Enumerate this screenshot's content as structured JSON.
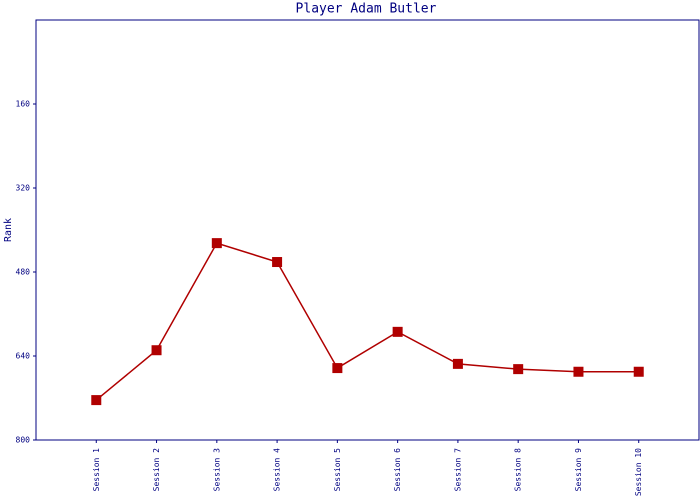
{
  "chart_data": {
    "type": "line",
    "title": "Player Adam Butler",
    "ylabel": "Rank",
    "categories": [
      "Session 1",
      "Session 2",
      "Session 3",
      "Session 4",
      "Session 5",
      "Session 6",
      "Session 7",
      "Session 8",
      "Session 9",
      "Session 10"
    ],
    "series": [
      {
        "name": "Rank",
        "color": "#b00000",
        "values": [
          724,
          629,
          425,
          461,
          663,
          594,
          655,
          665,
          670,
          670
        ]
      }
    ],
    "ylim": [
      800,
      0
    ],
    "yticks": [
      160,
      320,
      480,
      640,
      800
    ],
    "grid": false
  }
}
